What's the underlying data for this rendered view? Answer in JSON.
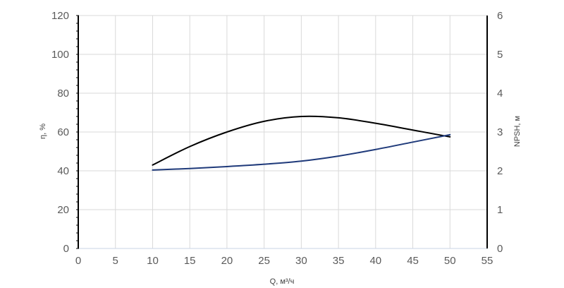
{
  "chart_data": {
    "type": "line",
    "xlabel": "Q, м³/ч",
    "ylabel_left": "η, %",
    "ylabel_right": "NPSH, м",
    "xlim": [
      0,
      55
    ],
    "ylim_left": [
      0,
      120
    ],
    "ylim_right": [
      0,
      6
    ],
    "x_ticks": [
      "0",
      "5",
      "10",
      "15",
      "20",
      "25",
      "30",
      "35",
      "40",
      "45",
      "50",
      "55"
    ],
    "y_left_ticks": [
      "0",
      "20",
      "40",
      "60",
      "80",
      "100",
      "120"
    ],
    "y_right_ticks": [
      "0",
      "1",
      "2",
      "3",
      "4",
      "5",
      "6"
    ],
    "grid": true,
    "series": [
      {
        "axis": "left",
        "color": "#000000",
        "x": [
          10,
          15,
          20,
          25,
          30,
          35,
          40,
          45,
          50
        ],
        "y": [
          43,
          52.5,
          60,
          65.5,
          68,
          67.3,
          64.5,
          61,
          57.5
        ]
      },
      {
        "axis": "right",
        "color": "#1f3a7a",
        "x": [
          10,
          15,
          20,
          25,
          30,
          35,
          40,
          45,
          50
        ],
        "y": [
          2.02,
          2.06,
          2.11,
          2.17,
          2.25,
          2.38,
          2.55,
          2.74,
          2.93
        ]
      }
    ]
  }
}
